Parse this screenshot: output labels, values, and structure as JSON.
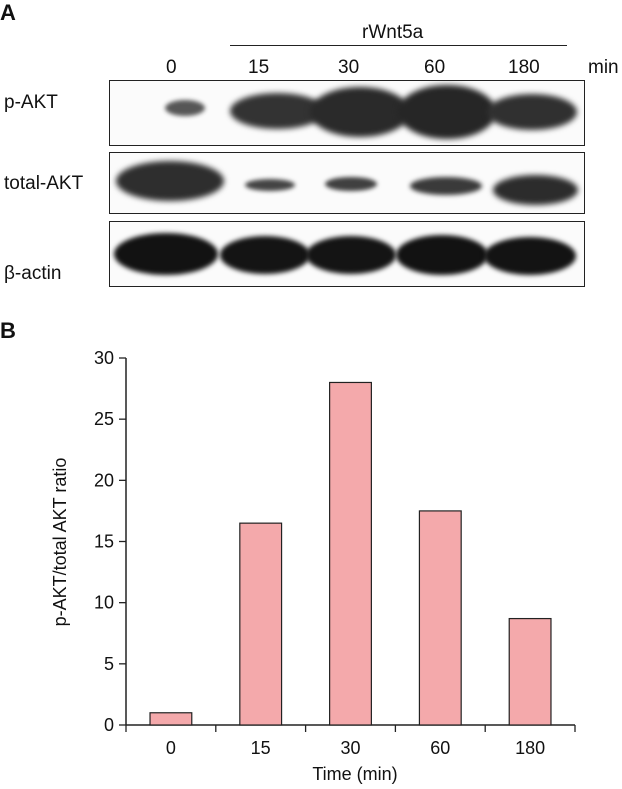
{
  "panel_a": {
    "letter": "A",
    "treatment_label": "rWnt5a",
    "time_unit": "min",
    "lanes": [
      "0",
      "15",
      "30",
      "60",
      "180"
    ],
    "rows": [
      {
        "label": "p-AKT",
        "intensity": [
          0.35,
          0.75,
          0.9,
          0.95,
          0.78
        ]
      },
      {
        "label": "total-AKT",
        "intensity": [
          0.9,
          0.35,
          0.4,
          0.5,
          0.8
        ]
      },
      {
        "label": "β-actin",
        "intensity": [
          1.0,
          1.0,
          1.0,
          1.0,
          1.0
        ]
      }
    ]
  },
  "panel_b": {
    "letter": "B"
  },
  "chart_data": {
    "type": "bar",
    "categories": [
      "0",
      "15",
      "30",
      "60",
      "180"
    ],
    "values": [
      1.0,
      16.5,
      28.0,
      17.5,
      8.7
    ],
    "xlabel": "Time (min)",
    "ylabel": "p-AKT/total AKT ratio",
    "ylim": [
      0,
      30
    ],
    "yticks": [
      0,
      5,
      10,
      15,
      20,
      25,
      30
    ],
    "bar_color": "#f4a9ab",
    "bar_edge_color": "#222222",
    "grid": false,
    "legend": "none"
  }
}
